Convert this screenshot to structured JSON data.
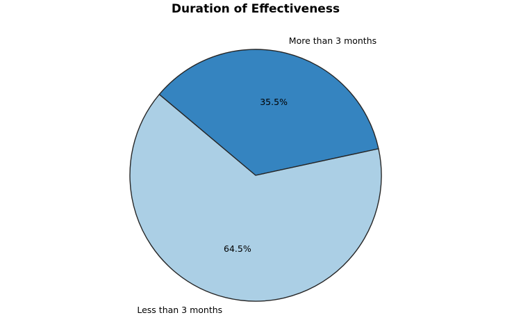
{
  "chart_data": {
    "type": "pie",
    "title": "Duration of Effectiveness",
    "categories": [
      "Less than 3 months",
      "More than 3 months"
    ],
    "values": [
      64.5,
      35.5
    ],
    "percent_labels": [
      "64.5%",
      "35.5%"
    ],
    "colors": [
      "#abcfe5",
      "#3584c0"
    ],
    "edge_color": "#262626",
    "start_angle_deg": 140,
    "direction": "counterclockwise"
  }
}
